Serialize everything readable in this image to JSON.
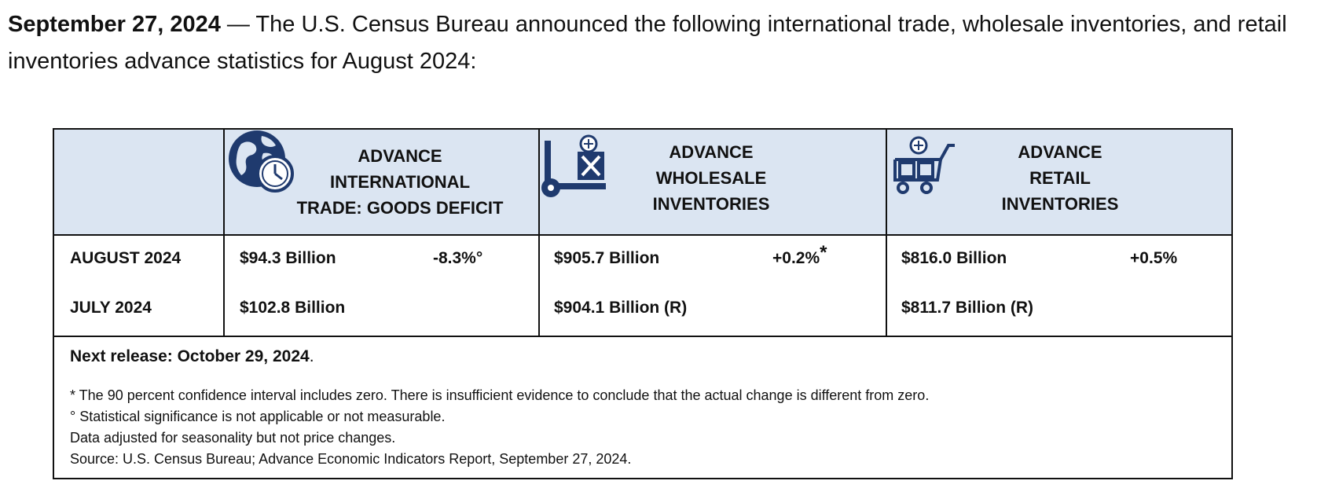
{
  "intro": {
    "date": "September 27, 2024",
    "text": " — The U.S. Census Bureau announced the following international trade, wholesale inventories, and retail inventories advance statistics for August 2024:"
  },
  "headers": {
    "trade": [
      "ADVANCE",
      "INTERNATIONAL",
      "TRADE: GOODS DEFICIT"
    ],
    "wholesale": [
      "ADVANCE",
      "WHOLESALE",
      "INVENTORIES"
    ],
    "retail": [
      "ADVANCE",
      "RETAIL",
      "INVENTORIES"
    ]
  },
  "rows": [
    {
      "label": "AUGUST 2024",
      "trade_value": "$94.3 Billion",
      "trade_change": "-8.3%°",
      "wholesale_value": "$905.7 Billion",
      "wholesale_change": "+0.2%",
      "wholesale_mark": "*",
      "retail_value": "$816.0 Billion",
      "retail_change": "+0.5%"
    },
    {
      "label": "JULY 2024",
      "trade_value": "$102.8 Billion",
      "wholesale_value": "$904.1 Billion (R)",
      "retail_value": "$811.7 Billion (R)"
    }
  ],
  "next_release": {
    "label": "Next release: October 29, 2024",
    "period": "."
  },
  "notes": [
    "* The 90 percent confidence interval includes zero. There is insufficient evidence to conclude that the actual change is different from zero.",
    "° Statistical significance is not applicable or not measurable.",
    "Data adjusted for seasonality but not price changes.",
    "Source: U.S. Census Bureau; Advance Economic Indicators Report, September 27, 2024."
  ],
  "colors": {
    "header_bg": "#dbe5f2",
    "icon_blue": "#1f3a6e"
  },
  "icons": [
    "globe-clock-icon",
    "hand-truck-box-icon",
    "shopping-cart-boxes-icon"
  ]
}
